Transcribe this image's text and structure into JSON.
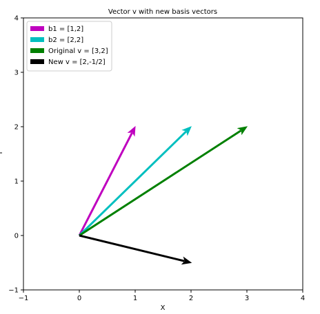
{
  "chart_data": {
    "type": "vector",
    "title": "Vector v with new basis vectors",
    "xlabel": "X",
    "ylabel": "Y",
    "xlim": [
      -1,
      4
    ],
    "ylim": [
      -1,
      4
    ],
    "xticks": [
      "−1",
      "0",
      "1",
      "2",
      "3",
      "4"
    ],
    "yticks": [
      "−1",
      "0",
      "1",
      "2",
      "3",
      "4"
    ],
    "grid": false,
    "legend_position": "top-left",
    "series": [
      {
        "name": "b1 = [1,2]",
        "color": "#bf00bf",
        "x": [
          0,
          1
        ],
        "y": [
          0,
          2
        ]
      },
      {
        "name": "b2 = [2,2]",
        "color": "#00bfbf",
        "x": [
          0,
          2
        ],
        "y": [
          0,
          2
        ]
      },
      {
        "name": "Original v = [3,2]",
        "color": "#008000",
        "x": [
          0,
          3
        ],
        "y": [
          0,
          2
        ]
      },
      {
        "name": "New v = [2,-1/2]",
        "color": "#000000",
        "x": [
          0,
          2
        ],
        "y": [
          0,
          -0.5
        ]
      }
    ]
  }
}
